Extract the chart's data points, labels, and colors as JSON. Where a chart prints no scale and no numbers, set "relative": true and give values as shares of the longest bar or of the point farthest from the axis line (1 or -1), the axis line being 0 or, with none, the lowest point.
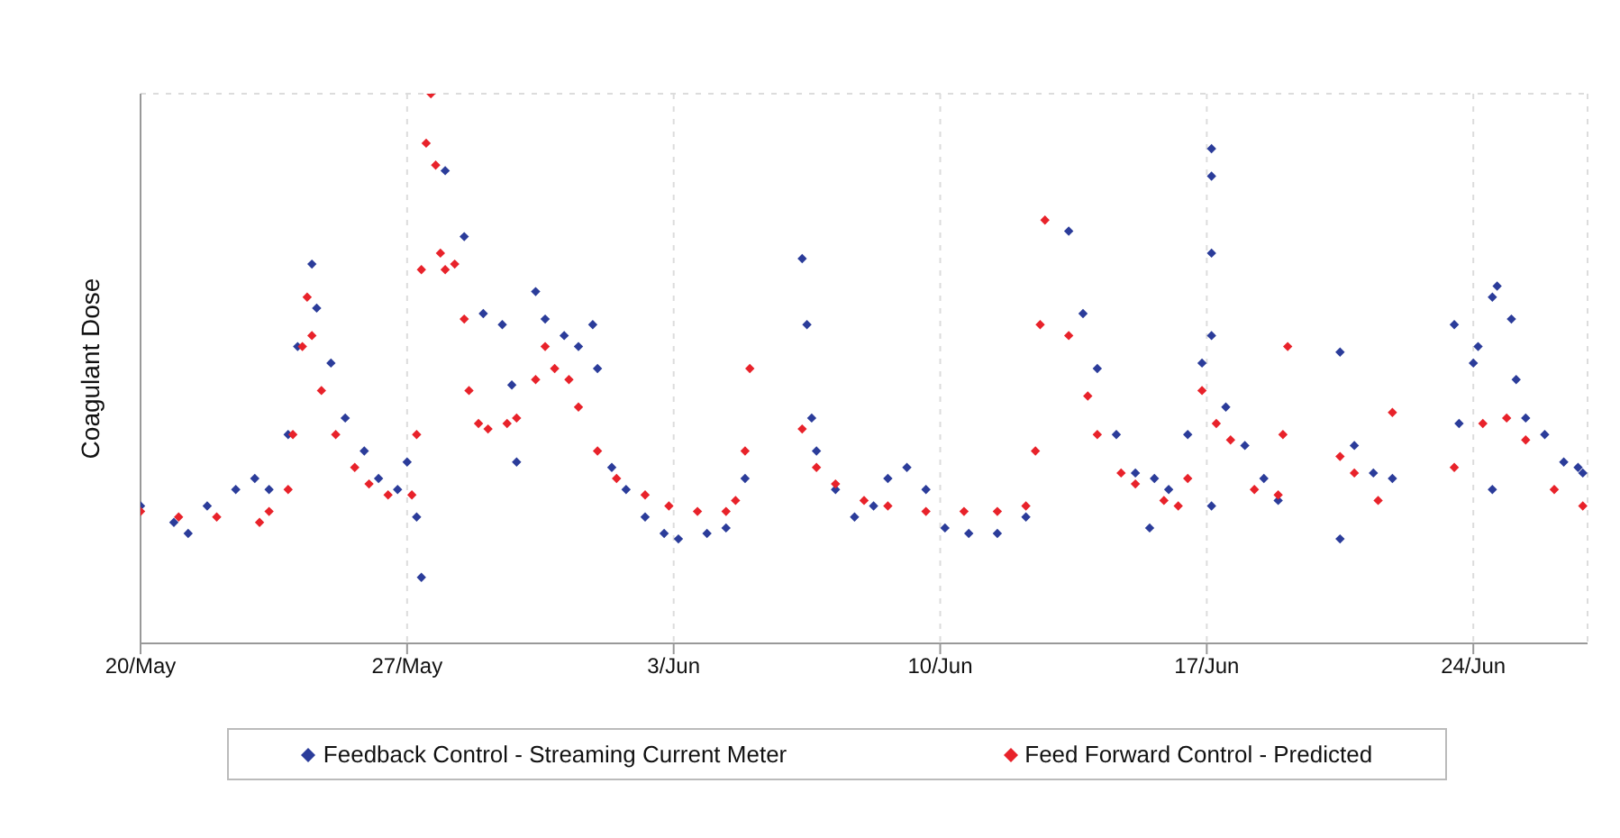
{
  "chart_data": {
    "type": "scatter",
    "relative": true,
    "ylabel": "Coagulant Dose",
    "xlim": [
      "--05-20",
      "--06-27"
    ],
    "xticks": [
      {
        "value": "--05-20",
        "label": "20/May"
      },
      {
        "value": "--05-27",
        "label": "27/May"
      },
      {
        "value": "--06-03",
        "label": "3/Jun"
      },
      {
        "value": "--06-10",
        "label": "10/Jun"
      },
      {
        "value": "--06-17",
        "label": "17/Jun"
      },
      {
        "value": "--06-24",
        "label": "24/Jun"
      }
    ],
    "grid": true,
    "legend": "bottom",
    "marker": "diamond",
    "series": [
      {
        "name": "Feedback Control - Streaming Current Meter",
        "color": "#2b3c9a",
        "x": [
          "--05-20T00:00",
          "--05-20T21:00",
          "--05-21T06:00",
          "--05-21T18:00",
          "--05-22T12:00",
          "--05-23T00:00",
          "--05-23T09:00",
          "--05-23T21:00",
          "--05-24T03:00",
          "--05-24T12:00",
          "--05-24T15:00",
          "--05-25T00:00",
          "--05-25T09:00",
          "--05-25T21:00",
          "--05-26T06:00",
          "--05-26T18:00",
          "--05-27T00:00",
          "--05-27T06:00",
          "--05-27T09:00",
          "--05-28T00:00",
          "--05-28T12:00",
          "--05-29T00:00",
          "--05-29T12:00",
          "--05-29T18:00",
          "--05-29T21:00",
          "--05-30T09:00",
          "--05-30T15:00",
          "--05-31T03:00",
          "--05-31T12:00",
          "--05-31T21:00",
          "--06-01T00:00",
          "--06-01T09:00",
          "--06-01T18:00",
          "--06-02T06:00",
          "--06-02T18:00",
          "--06-03T03:00",
          "--06-03T21:00",
          "--06-04T09:00",
          "--06-04T21:00",
          "--06-06T09:00",
          "--06-06T12:00",
          "--06-06T15:00",
          "--06-06T18:00",
          "--06-07T06:00",
          "--06-07T18:00",
          "--06-08T06:00",
          "--06-08T15:00",
          "--06-09T03:00",
          "--06-09T15:00",
          "--06-10T03:00",
          "--06-10T18:00",
          "--06-11T12:00",
          "--06-12T06:00",
          "--06-13T09:00",
          "--06-13T18:00",
          "--06-14T03:00",
          "--06-14T15:00",
          "--06-15T03:00",
          "--06-15T12:00",
          "--06-15T15:00",
          "--06-16T00:00",
          "--06-16T12:00",
          "--06-16T21:00",
          "--06-17T03:00",
          "--06-17T03:00",
          "--06-17T03:00",
          "--06-17T03:00",
          "--06-17T03:00",
          "--06-17T12:00",
          "--06-18T00:00",
          "--06-18T12:00",
          "--06-18T21:00",
          "--06-20T12:00",
          "--06-20T12:00",
          "--06-20T21:00",
          "--06-21T09:00",
          "--06-21T21:00",
          "--06-23T12:00",
          "--06-23T15:00",
          "--06-24T00:00",
          "--06-24T03:00",
          "--06-24T12:00",
          "--06-24T12:00",
          "--06-24T15:00",
          "--06-25T00:00",
          "--06-25T03:00",
          "--06-25T09:00",
          "--06-25T21:00",
          "--06-26T09:00",
          "--06-26T18:00",
          "--06-26T21:00"
        ],
        "values": [
          0.25,
          0.22,
          0.2,
          0.25,
          0.28,
          0.3,
          0.28,
          0.38,
          0.54,
          0.69,
          0.61,
          0.51,
          0.41,
          0.35,
          0.3,
          0.28,
          0.33,
          0.23,
          0.12,
          0.86,
          0.74,
          0.6,
          0.58,
          0.47,
          0.33,
          0.64,
          0.59,
          0.56,
          0.54,
          0.58,
          0.5,
          0.32,
          0.28,
          0.23,
          0.2,
          0.19,
          0.2,
          0.21,
          0.3,
          0.7,
          0.58,
          0.41,
          0.35,
          0.28,
          0.23,
          0.25,
          0.3,
          0.32,
          0.28,
          0.21,
          0.2,
          0.2,
          0.23,
          0.75,
          0.6,
          0.5,
          0.38,
          0.31,
          0.21,
          0.3,
          0.28,
          0.38,
          0.51,
          0.9,
          0.85,
          0.71,
          0.56,
          0.25,
          0.43,
          0.36,
          0.3,
          0.26,
          0.53,
          0.19,
          0.36,
          0.31,
          0.3,
          0.58,
          0.4,
          0.51,
          0.54,
          0.63,
          0.28,
          0.65,
          0.59,
          0.48,
          0.41,
          0.38,
          0.33,
          0.32,
          0.31
        ]
      },
      {
        "name": "Feed Forward Control - Predicted",
        "color": "#e8222a",
        "x": [
          "--05-20T00:00",
          "--05-21T00:00",
          "--05-22T00:00",
          "--05-23T03:00",
          "--05-23T09:00",
          "--05-23T21:00",
          "--05-24T00:00",
          "--05-24T06:00",
          "--05-24T09:00",
          "--05-24T12:00",
          "--05-24T18:00",
          "--05-25T03:00",
          "--05-25T15:00",
          "--05-26T00:00",
          "--05-26T12:00",
          "--05-27T03:00",
          "--05-27T06:00",
          "--05-27T09:00",
          "--05-27T12:00",
          "--05-27T15:00",
          "--05-27T18:00",
          "--05-27T21:00",
          "--05-28T00:00",
          "--05-28T06:00",
          "--05-28T12:00",
          "--05-28T15:00",
          "--05-28T21:00",
          "--05-29T03:00",
          "--05-29T15:00",
          "--05-29T21:00",
          "--05-30T09:00",
          "--05-30T15:00",
          "--05-30T21:00",
          "--05-31T06:00",
          "--05-31T12:00",
          "--06-01T00:00",
          "--06-01T12:00",
          "--06-02T06:00",
          "--06-02T21:00",
          "--06-03T15:00",
          "--06-04T09:00",
          "--06-04T15:00",
          "--06-04T21:00",
          "--06-05T00:00",
          "--06-06T09:00",
          "--06-06T18:00",
          "--06-07T06:00",
          "--06-08T00:00",
          "--06-08T15:00",
          "--06-09T15:00",
          "--06-10T15:00",
          "--06-11T12:00",
          "--06-12T06:00",
          "--06-12T12:00",
          "--06-12T15:00",
          "--06-12T18:00",
          "--06-13T09:00",
          "--06-13T21:00",
          "--06-14T03:00",
          "--06-14T18:00",
          "--06-15T03:00",
          "--06-15T21:00",
          "--06-16T06:00",
          "--06-16T12:00",
          "--06-16T21:00",
          "--06-17T06:00",
          "--06-17T15:00",
          "--06-18T06:00",
          "--06-18T21:00",
          "--06-19T00:00",
          "--06-19T03:00",
          "--06-20T12:00",
          "--06-20T21:00",
          "--06-21T12:00",
          "--06-21T21:00",
          "--06-23T12:00",
          "--06-24T06:00",
          "--06-24T21:00",
          "--06-25T09:00",
          "--06-26T03:00",
          "--06-26T21:00"
        ],
        "values": [
          0.24,
          0.23,
          0.23,
          0.22,
          0.24,
          0.28,
          0.38,
          0.54,
          0.63,
          0.56,
          0.46,
          0.38,
          0.32,
          0.29,
          0.27,
          0.27,
          0.38,
          0.68,
          0.91,
          1,
          0.87,
          0.71,
          0.68,
          0.69,
          0.59,
          0.46,
          0.4,
          0.39,
          0.4,
          0.41,
          0.48,
          0.54,
          0.5,
          0.48,
          0.43,
          0.35,
          0.3,
          0.27,
          0.25,
          0.24,
          0.24,
          0.26,
          0.35,
          0.5,
          0.39,
          0.32,
          0.29,
          0.26,
          0.25,
          0.24,
          0.24,
          0.24,
          0.25,
          0.35,
          0.58,
          0.77,
          0.56,
          0.45,
          0.38,
          0.31,
          0.29,
          0.26,
          0.25,
          0.3,
          0.46,
          0.4,
          0.37,
          0.28,
          0.27,
          0.38,
          0.54,
          0.34,
          0.31,
          0.26,
          0.42,
          0.32,
          0.4,
          0.41,
          0.37,
          0.28,
          0.25
        ]
      }
    ]
  }
}
